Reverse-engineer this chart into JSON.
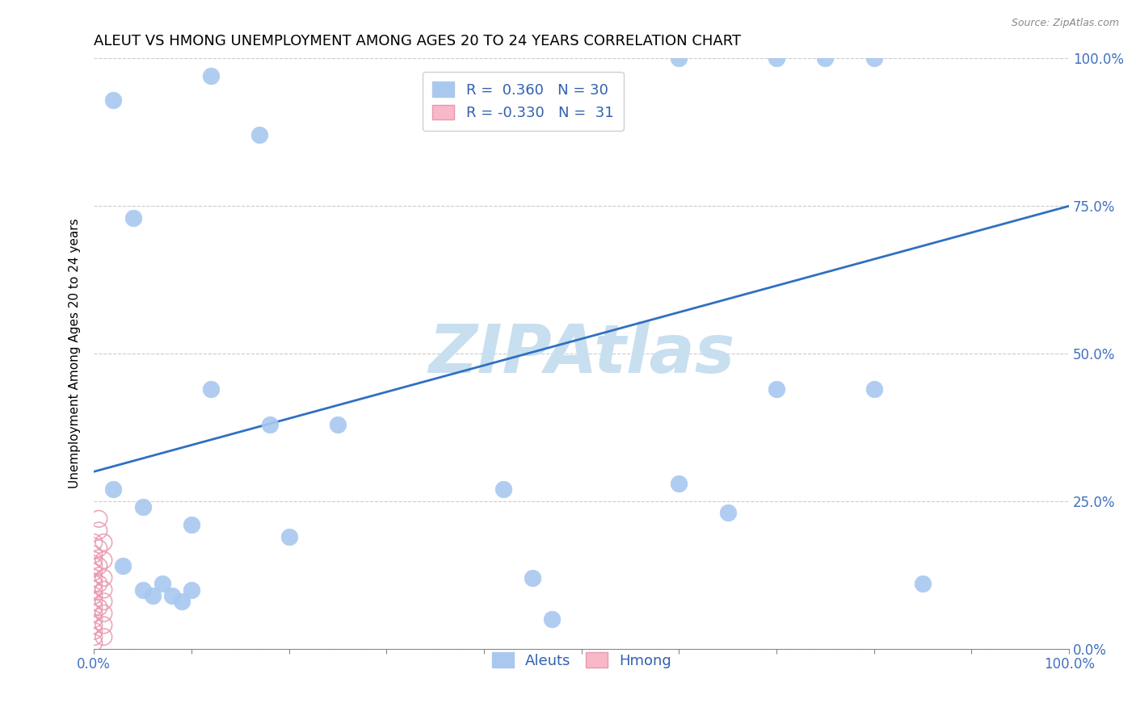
{
  "title": "ALEUT VS HMONG UNEMPLOYMENT AMONG AGES 20 TO 24 YEARS CORRELATION CHART",
  "source": "Source: ZipAtlas.com",
  "ylabel": "Unemployment Among Ages 20 to 24 years",
  "xlim": [
    0,
    1
  ],
  "ylim": [
    0,
    1
  ],
  "xtick_labels_bottom": [
    "0.0%",
    "",
    "",
    "",
    "",
    "",
    "",
    "",
    "",
    "",
    "100.0%"
  ],
  "xtick_vals": [
    0.0,
    0.1,
    0.2,
    0.3,
    0.4,
    0.5,
    0.6,
    0.7,
    0.8,
    0.9,
    1.0
  ],
  "ytick_labels_right": [
    "0.0%",
    "25.0%",
    "50.0%",
    "75.0%",
    "100.0%"
  ],
  "ytick_vals": [
    0,
    0.25,
    0.5,
    0.75,
    1.0
  ],
  "aleuts_color": "#a8c8f0",
  "aleuts_edge": "#a8c8f0",
  "hmong_color": "#f8b8c8",
  "hmong_edge": "#e898b0",
  "trendline_color": "#3070c0",
  "grid_color": "#cccccc",
  "watermark_color": "#c8dff0",
  "aleut_R": "0.360",
  "aleut_N": "30",
  "hmong_R": "-0.330",
  "hmong_N": "31",
  "aleut_scatter": [
    [
      0.02,
      0.93
    ],
    [
      0.12,
      0.97
    ],
    [
      0.17,
      0.87
    ],
    [
      0.04,
      0.73
    ],
    [
      0.12,
      0.44
    ],
    [
      0.18,
      0.38
    ],
    [
      0.25,
      0.38
    ],
    [
      0.02,
      0.27
    ],
    [
      0.05,
      0.24
    ],
    [
      0.1,
      0.21
    ],
    [
      0.2,
      0.19
    ],
    [
      0.6,
      0.28
    ],
    [
      0.65,
      0.23
    ],
    [
      0.7,
      0.44
    ],
    [
      0.8,
      0.44
    ],
    [
      0.42,
      0.27
    ],
    [
      0.45,
      0.12
    ],
    [
      0.47,
      0.05
    ],
    [
      0.85,
      0.11
    ],
    [
      0.6,
      1.0
    ],
    [
      0.7,
      1.0
    ],
    [
      0.75,
      1.0
    ],
    [
      0.8,
      1.0
    ],
    [
      0.03,
      0.14
    ],
    [
      0.07,
      0.11
    ],
    [
      0.05,
      0.1
    ],
    [
      0.06,
      0.09
    ],
    [
      0.08,
      0.09
    ],
    [
      0.09,
      0.08
    ],
    [
      0.1,
      0.1
    ]
  ],
  "hmong_scatter": [
    [
      0.0,
      0.18
    ],
    [
      0.0,
      0.16
    ],
    [
      0.0,
      0.15
    ],
    [
      0.0,
      0.14
    ],
    [
      0.0,
      0.13
    ],
    [
      0.0,
      0.12
    ],
    [
      0.0,
      0.11
    ],
    [
      0.0,
      0.1
    ],
    [
      0.0,
      0.09
    ],
    [
      0.0,
      0.08
    ],
    [
      0.0,
      0.07
    ],
    [
      0.0,
      0.06
    ],
    [
      0.0,
      0.05
    ],
    [
      0.0,
      0.04
    ],
    [
      0.0,
      0.03
    ],
    [
      0.0,
      0.02
    ],
    [
      0.0,
      0.01
    ],
    [
      0.01,
      0.18
    ],
    [
      0.01,
      0.15
    ],
    [
      0.01,
      0.12
    ],
    [
      0.01,
      0.1
    ],
    [
      0.01,
      0.08
    ],
    [
      0.01,
      0.06
    ],
    [
      0.01,
      0.04
    ],
    [
      0.01,
      0.02
    ],
    [
      0.005,
      0.2
    ],
    [
      0.005,
      0.17
    ],
    [
      0.005,
      0.14
    ],
    [
      0.005,
      0.11
    ],
    [
      0.005,
      0.07
    ],
    [
      0.005,
      0.22
    ]
  ],
  "trend_x": [
    0,
    1.0
  ],
  "trend_y": [
    0.3,
    0.75
  ],
  "title_fontsize": 13,
  "axis_label_fontsize": 11,
  "tick_fontsize": 12,
  "legend_fontsize": 13,
  "watermark_fontsize": 60
}
